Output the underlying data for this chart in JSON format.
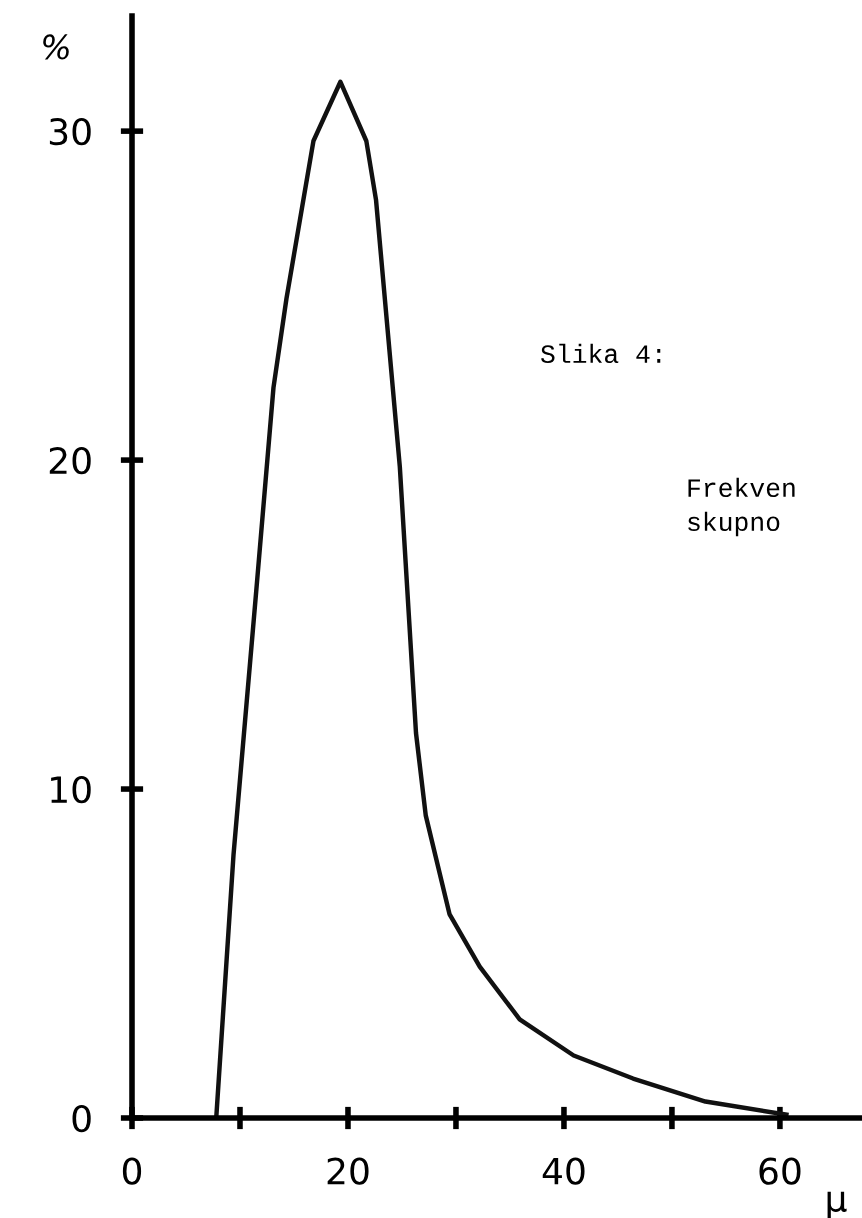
{
  "chart_data": {
    "type": "line",
    "xlabel": "μ",
    "ylabel": "%",
    "annotations": [
      "Slika 4:",
      "Frekven",
      "skupno"
    ],
    "x": [
      7.8,
      9.4,
      11.5,
      13.1,
      14.3,
      16.8,
      19.3,
      21.7,
      22.6,
      24.8,
      26.3,
      27.2,
      29.4,
      32.2,
      35.9,
      40.9,
      46.4,
      53.1,
      60.6
    ],
    "series": [
      {
        "color": "#111111",
        "values": [
          0,
          8.0,
          16.0,
          22.2,
          24.9,
          29.7,
          31.5,
          29.7,
          27.9,
          19.8,
          11.7,
          9.2,
          6.2,
          4.6,
          3.0,
          1.9,
          1.2,
          0.5,
          0.1
        ]
      }
    ],
    "xlim": [
      0,
      67.6
    ],
    "ylim": [
      0,
      33.5
    ],
    "xticks": [
      0,
      {
        "value": 10,
        "label": null
      },
      20,
      {
        "value": 30,
        "label": null
      },
      40,
      {
        "value": 50,
        "label": null
      },
      60
    ],
    "yticks": [
      0,
      10,
      20,
      30
    ],
    "grid": false,
    "legend": false,
    "marker": "none",
    "line_style": "solid"
  }
}
